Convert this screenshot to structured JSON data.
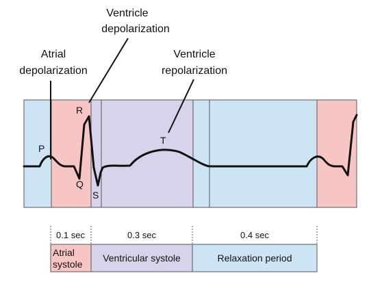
{
  "annotations": {
    "ventricle_depolarization": [
      "Ventricle",
      "depolarization"
    ],
    "atrial_depolarization": [
      "Atrial",
      "depolarization"
    ],
    "ventricle_repolarization": [
      "Ventricle",
      "repolarization"
    ]
  },
  "wave_labels": {
    "P": "P",
    "Q": "Q",
    "R": "R",
    "S": "S",
    "T": "T"
  },
  "timeline": {
    "durations": [
      "0.1 sec",
      "0.3 sec",
      "0.4 sec"
    ],
    "phases": {
      "atrial_systole": [
        "Atrial",
        "systole"
      ],
      "ventricular_systole": "Ventricular systole",
      "relaxation_period": "Relaxation period"
    }
  },
  "colors": {
    "atrial": "#f7c6c4",
    "ventricular": "#d8d3ea",
    "relaxation": "#cde4f4",
    "border": "#555555",
    "ecg": "#111111"
  }
}
